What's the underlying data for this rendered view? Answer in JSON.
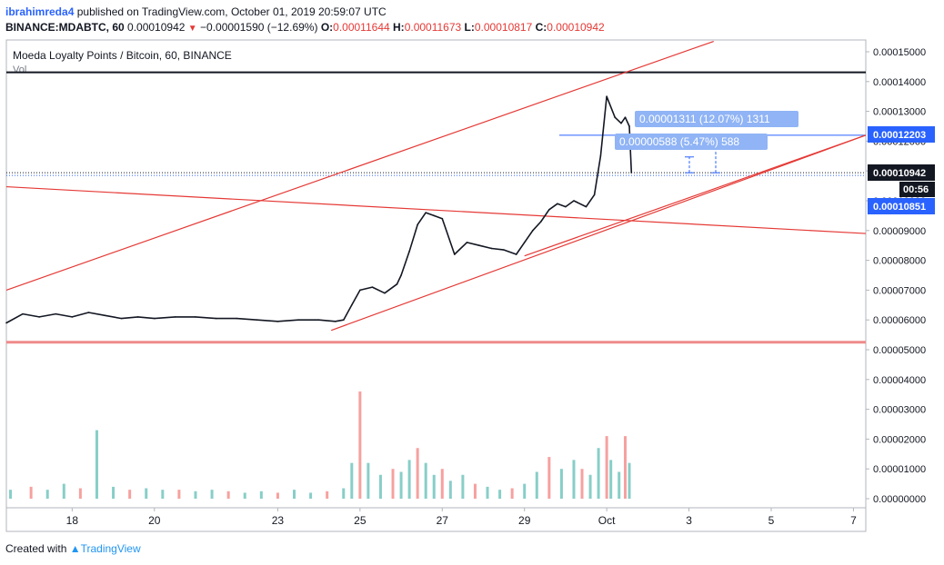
{
  "header": {
    "author": "ibrahimreda4",
    "published": "published on TradingView.com, October 01, 2019 20:59:07 UTC"
  },
  "ohlc": {
    "symbol": "BINANCE:MDABTC, 60",
    "last": "0.00010942",
    "change": "−0.00001590 (−12.69%)",
    "o_label": "O:",
    "o": "0.00011644",
    "h_label": "H:",
    "h": "0.00011673",
    "l_label": "L:",
    "l": "0.00010817",
    "c_label": "C:",
    "c": "0.00010942"
  },
  "chart_title": "Moeda Loyalty Points / Bitcoin, 60, BINANCE",
  "vol_label": "Vol",
  "measure": {
    "big": "0.00001311 (12.07%) 1311",
    "small": "0.00000588 (5.47%) 588"
  },
  "price_badges": {
    "upper": "0.00012203",
    "last": "0.00010942",
    "countdown": "00:56",
    "lower": "0.00010851"
  },
  "footer": {
    "created": "Created with",
    "brand": "TradingView"
  },
  "colors": {
    "up": "#26a69a",
    "down": "#ef5350",
    "trend": "#e53935",
    "badge": "#2962ff",
    "measure": "#90b4f5",
    "support": "#f08a8a"
  },
  "chart_data": {
    "type": "line",
    "y_ticks": [
      "0.00015000",
      "0.00014000",
      "0.00013000",
      "0.00012000",
      "0.00011000",
      "0.00010000",
      "0.00009000",
      "0.00008000",
      "0.00007000",
      "0.00006000",
      "0.00005000",
      "0.00004000",
      "0.00003000",
      "0.00002000",
      "0.00001000",
      "0.00000000"
    ],
    "x_ticks": [
      "18",
      "20",
      "23",
      "25",
      "27",
      "29",
      "Oct",
      "3",
      "5",
      "7"
    ],
    "ylim": [
      0.0,
      0.000155
    ],
    "x_range_days": [
      16.4,
      37.3
    ],
    "tick_days": [
      18,
      20,
      23,
      25,
      27,
      29,
      31,
      33,
      35,
      37
    ],
    "series": [
      {
        "x": [
          16.4,
          16.8,
          17.2,
          17.6,
          18.0,
          18.4,
          18.8,
          19.2,
          19.6,
          20.0,
          20.5,
          21.0,
          21.5,
          22.0,
          22.5,
          23.0,
          23.5,
          24.0,
          24.4,
          24.6,
          24.8,
          25.0,
          25.3,
          25.6,
          25.9,
          26.0,
          26.2,
          26.4,
          26.6,
          26.8,
          27.0,
          27.3,
          27.6,
          27.9,
          28.2,
          28.5,
          28.8,
          29.0,
          29.2,
          29.4,
          29.6,
          29.8,
          30.0,
          30.2,
          30.5,
          30.7,
          30.85,
          31.0,
          31.2,
          31.35,
          31.45,
          31.55,
          31.6
        ],
        "values": [
          5.9e-05,
          6.2e-05,
          6.1e-05,
          6.2e-05,
          6.1e-05,
          6.25e-05,
          6.15e-05,
          6.05e-05,
          6.1e-05,
          6.05e-05,
          6.1e-05,
          6.1e-05,
          6.05e-05,
          6.05e-05,
          6e-05,
          5.95e-05,
          6e-05,
          6e-05,
          5.95e-05,
          6e-05,
          6.5e-05,
          7e-05,
          7.1e-05,
          6.9e-05,
          7.2e-05,
          7.5e-05,
          8.3e-05,
          9.2e-05,
          9.6e-05,
          9.5e-05,
          9.4e-05,
          8.2e-05,
          8.6e-05,
          8.5e-05,
          8.4e-05,
          8.35e-05,
          8.2e-05,
          8.6e-05,
          9e-05,
          9.3e-05,
          9.7e-05,
          9.9e-05,
          9.8e-05,
          0.0001,
          9.8e-05,
          0.000102,
          0.000115,
          0.000135,
          0.000128,
          0.000126,
          0.000128,
          0.000125,
          0.0001094
        ]
      },
      {
        "name": "Vol",
        "x": [
          16.5,
          17.0,
          17.4,
          17.8,
          18.2,
          18.6,
          19.0,
          19.4,
          19.8,
          20.2,
          20.6,
          21.0,
          21.4,
          21.8,
          22.2,
          22.6,
          23.0,
          23.4,
          23.8,
          24.2,
          24.6,
          24.8,
          25.0,
          25.2,
          25.5,
          25.8,
          26.0,
          26.2,
          26.4,
          26.6,
          26.8,
          27.0,
          27.2,
          27.5,
          27.8,
          28.1,
          28.4,
          28.7,
          29.0,
          29.3,
          29.6,
          29.9,
          30.2,
          30.4,
          30.6,
          30.8,
          31.0,
          31.1,
          31.3,
          31.45,
          31.55
        ],
        "values": [
          3e-06,
          4e-06,
          3e-06,
          5e-06,
          3.5e-06,
          2.3e-05,
          4e-06,
          3e-06,
          3.5e-06,
          3e-06,
          3e-06,
          2.5e-06,
          3e-06,
          2.5e-06,
          2e-06,
          2.5e-06,
          2e-06,
          3e-06,
          2e-06,
          2.5e-06,
          3.5e-06,
          1.2e-05,
          3.6e-05,
          1.2e-05,
          8e-06,
          1e-05,
          9e-06,
          1.3e-05,
          1.7e-05,
          1.2e-05,
          8e-06,
          1e-05,
          6e-06,
          8e-06,
          5e-06,
          4e-06,
          3e-06,
          3.5e-06,
          5e-06,
          9e-06,
          1.4e-05,
          1e-05,
          1.3e-05,
          1e-05,
          8e-06,
          1.7e-05,
          2.1e-05,
          1.3e-05,
          9e-06,
          2.1e-05,
          1.2e-05
        ]
      }
    ],
    "horizontal_lines": [
      {
        "value": 0.0001431,
        "color": "#131722"
      },
      {
        "value": 5.25e-05,
        "color": "#f08a8a"
      }
    ],
    "trendlines": [
      {
        "from": [
          16.4,
          7e-05
        ],
        "to": [
          33.6,
          0.0001535
        ]
      },
      {
        "from": [
          16.4,
          0.0001047
        ],
        "to": [
          37.3,
          8.9e-05
        ]
      },
      {
        "from": [
          24.3,
          5.65e-05
        ],
        "to": [
          37.3,
          0.000122
        ]
      },
      {
        "from": [
          29.0,
          8.15e-05
        ],
        "to": [
          37.3,
          0.000122
        ]
      }
    ],
    "measure_ranges": [
      {
        "from": 0.0001094,
        "to": 0.000122
      },
      {
        "from": 0.0001094,
        "to": 0.0001147
      }
    ],
    "grid": false
  }
}
